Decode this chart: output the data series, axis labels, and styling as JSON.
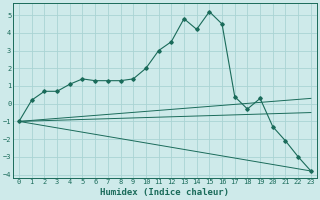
{
  "xlabel": "Humidex (Indice chaleur)",
  "ylabel": "",
  "xlim": [
    -0.5,
    23.5
  ],
  "ylim": [
    -4.2,
    5.7
  ],
  "background_color": "#ceeaea",
  "grid_color": "#aad4d4",
  "line_color": "#1a6b5a",
  "lines": [
    {
      "x": [
        0,
        1,
        2,
        3,
        4,
        5,
        6,
        7,
        8,
        9,
        10,
        11,
        12,
        13,
        14,
        15,
        16,
        17,
        18,
        19,
        20,
        21,
        22,
        23
      ],
      "y": [
        -1.0,
        0.2,
        0.7,
        0.7,
        1.1,
        1.4,
        1.3,
        1.3,
        1.3,
        1.4,
        2.0,
        3.0,
        3.5,
        4.8,
        4.2,
        5.2,
        4.5,
        0.4,
        -0.3,
        0.3,
        -1.3,
        -2.1,
        -3.0,
        -3.8
      ],
      "has_markers": true
    },
    {
      "x": [
        0,
        23
      ],
      "y": [
        -1.0,
        -3.8
      ],
      "has_markers": false
    },
    {
      "x": [
        0,
        23
      ],
      "y": [
        -1.0,
        -0.5
      ],
      "has_markers": false
    },
    {
      "x": [
        0,
        23
      ],
      "y": [
        -1.0,
        0.3
      ],
      "has_markers": false
    }
  ],
  "xticks": [
    0,
    1,
    2,
    3,
    4,
    5,
    6,
    7,
    8,
    9,
    10,
    11,
    12,
    13,
    14,
    15,
    16,
    17,
    18,
    19,
    20,
    21,
    22,
    23
  ],
  "yticks": [
    -4,
    -3,
    -2,
    -1,
    0,
    1,
    2,
    3,
    4,
    5
  ],
  "tick_fontsize": 5,
  "xlabel_fontsize": 6.5,
  "xlabel_fontweight": "bold"
}
